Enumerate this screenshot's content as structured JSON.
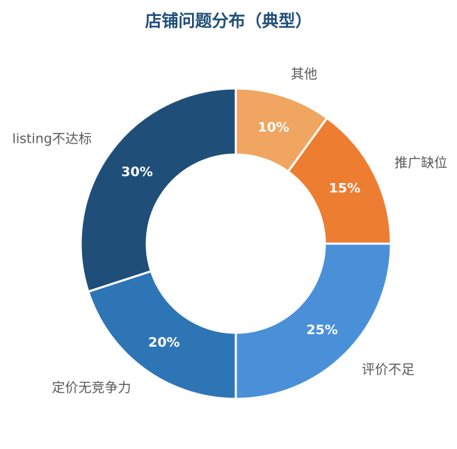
{
  "chart_data": {
    "type": "pie",
    "donut": true,
    "title": "店铺问题分布（典型）",
    "categories": [
      "其他",
      "推广缺位",
      "评价不足",
      "定价无竞争力",
      "listing不达标"
    ],
    "values": [
      10,
      15,
      25,
      20,
      30
    ],
    "value_labels": [
      "10%",
      "15%",
      "25%",
      "20%",
      "30%"
    ],
    "colors": [
      "#f0a561",
      "#ed7d31",
      "#4a90d9",
      "#2e75b6",
      "#1f4e79"
    ],
    "legend": "none"
  }
}
